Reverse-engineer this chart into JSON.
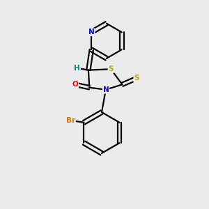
{
  "background_color": "#ebebeb",
  "bond_color": "#000000",
  "atom_colors": {
    "N": "#0000ee",
    "O": "#ff0000",
    "S": "#bbaa00",
    "Br": "#cc7700",
    "H": "#008888",
    "C": "#000000"
  }
}
